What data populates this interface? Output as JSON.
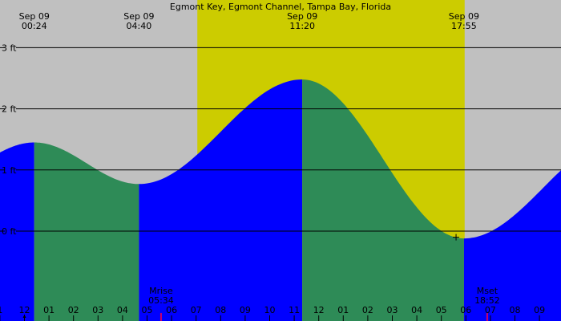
{
  "chart_data": {
    "type": "area",
    "title": "Egmont Key, Egmont Channel, Tampa Bay, Florida",
    "x_unit": "hour",
    "y_unit": "ft",
    "xlim": [
      -1,
      22.8
    ],
    "ylim": [
      -1.5,
      3.3
    ],
    "yticks": [
      {
        "value": 0,
        "label": "0 ft"
      },
      {
        "value": 1,
        "label": "1 ft"
      },
      {
        "value": 2,
        "label": "2 ft"
      },
      {
        "value": 3,
        "label": "3 ft"
      }
    ],
    "xticks": [
      {
        "hour": -1,
        "label": "1"
      },
      {
        "hour": 0,
        "label": "12"
      },
      {
        "hour": 1,
        "label": "01"
      },
      {
        "hour": 2,
        "label": "02"
      },
      {
        "hour": 3,
        "label": "03"
      },
      {
        "hour": 4,
        "label": "04"
      },
      {
        "hour": 5,
        "label": "05"
      },
      {
        "hour": 6,
        "label": "06"
      },
      {
        "hour": 7,
        "label": "07"
      },
      {
        "hour": 8,
        "label": "08"
      },
      {
        "hour": 9,
        "label": "09"
      },
      {
        "hour": 10,
        "label": "10"
      },
      {
        "hour": 11,
        "label": "11"
      },
      {
        "hour": 12,
        "label": "12"
      },
      {
        "hour": 13,
        "label": "01"
      },
      {
        "hour": 14,
        "label": "02"
      },
      {
        "hour": 15,
        "label": "03"
      },
      {
        "hour": 16,
        "label": "04"
      },
      {
        "hour": 17,
        "label": "05"
      },
      {
        "hour": 18,
        "label": "06"
      },
      {
        "hour": 19,
        "label": "07"
      },
      {
        "hour": 20,
        "label": "08"
      },
      {
        "hour": 21,
        "label": "09"
      }
    ],
    "daylight": [
      7.05,
      17.95
    ],
    "tides": [
      {
        "hour": 0.4,
        "height": 1.45,
        "type": "high",
        "date_label": "Sep 09",
        "time_label": "00:24"
      },
      {
        "hour": 4.67,
        "height": 0.77,
        "type": "low",
        "date_label": "Sep 09",
        "time_label": "04:40"
      },
      {
        "hour": 11.33,
        "height": 2.48,
        "type": "high",
        "date_label": "Sep 09",
        "time_label": "11:20"
      },
      {
        "hour": 17.92,
        "height": -0.12,
        "type": "low",
        "date_label": "Sep 09",
        "time_label": "17:55"
      }
    ],
    "end_point": {
      "hour": 22.8,
      "height": 1.0
    },
    "current_marker": {
      "hour": 17.6,
      "height": -0.1
    },
    "moon_events": [
      {
        "name": "Mrise",
        "time_label": "05:34",
        "hour": 5.57
      },
      {
        "name": "Mset",
        "time_label": "18:52",
        "hour": 18.87
      }
    ],
    "midnight_marker_hour": 0,
    "colors": {
      "night": "#c0c0c0",
      "day": "#cccc00",
      "rising": "#0000ff",
      "falling": "#2e8b57",
      "gridline": "#000000",
      "moon_tick": "#cc0066"
    }
  }
}
